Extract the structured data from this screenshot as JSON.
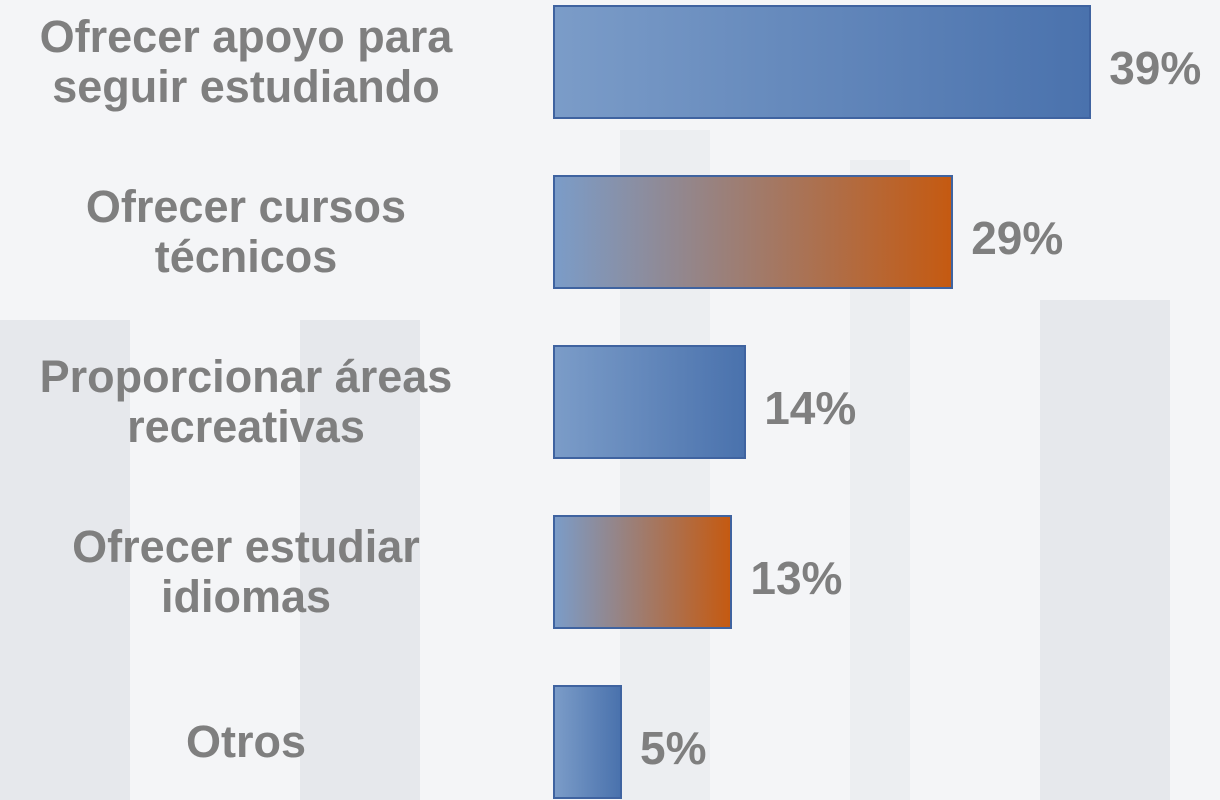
{
  "chart_data": {
    "type": "bar",
    "orientation": "horizontal",
    "categories": [
      "Ofrecer apoyo para\nseguir estudiando",
      "Ofrecer cursos\ntécnicos",
      "Proporcionar áreas\nrecreativas",
      "Ofrecer estudiar\nidiomas",
      "Otros"
    ],
    "values": [
      39,
      29,
      14,
      13,
      5
    ],
    "value_labels": [
      "39%",
      "29%",
      "14%",
      "13%",
      "5%"
    ],
    "colors": [
      "#4a72ad",
      "#c55a11",
      "#4a72ad",
      "#c55a11",
      "#4a72ad"
    ],
    "gradient_start": "#7b9cc8"
  }
}
